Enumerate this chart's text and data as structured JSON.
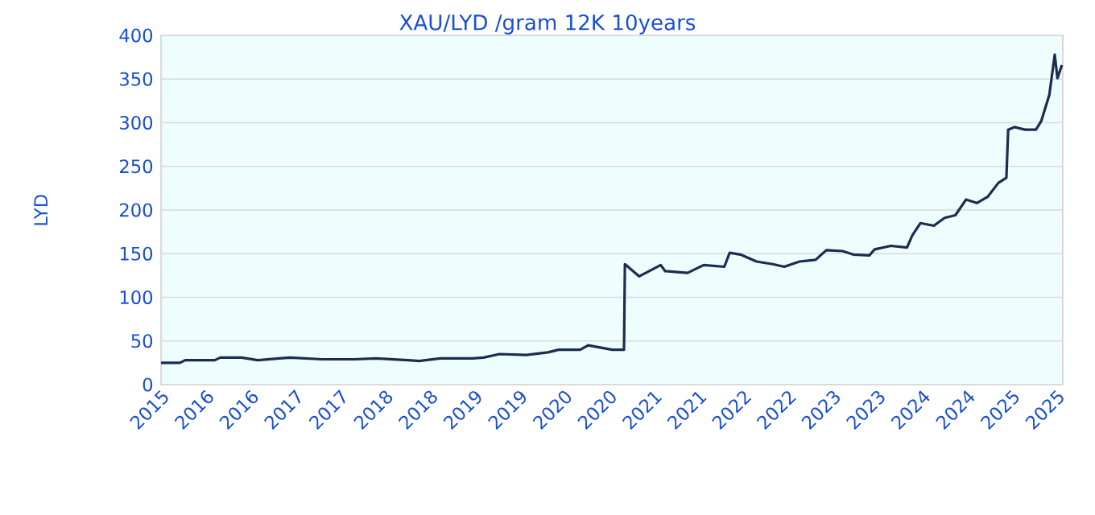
{
  "chart_data": {
    "type": "line",
    "title": "XAU/LYD /gram 12K 10years",
    "ylabel": "LYD",
    "x": [
      2015.5,
      2015.71,
      2015.77,
      2016.1,
      2016.16,
      2016.4,
      2016.58,
      2016.82,
      2016.94,
      2017.3,
      2017.66,
      2017.9,
      2018.26,
      2018.38,
      2018.62,
      2018.98,
      2019.1,
      2019.28,
      2019.58,
      2019.82,
      2019.94,
      2020.18,
      2020.27,
      2020.54,
      2020.67,
      2020.68,
      2020.84,
      2021.08,
      2021.13,
      2021.38,
      2021.56,
      2021.79,
      2021.85,
      2021.97,
      2022.15,
      2022.33,
      2022.46,
      2022.63,
      2022.81,
      2022.93,
      2023.11,
      2023.23,
      2023.41,
      2023.47,
      2023.65,
      2023.83,
      2023.89,
      2023.98,
      2024.13,
      2024.25,
      2024.37,
      2024.49,
      2024.61,
      2024.73,
      2024.85,
      2024.94,
      2024.96,
      2025.03,
      2025.15,
      2025.27,
      2025.33,
      2025.42,
      2025.48,
      2025.51,
      2025.56
    ],
    "series": [
      {
        "color": "#1b2d4f",
        "values": [
          25,
          25,
          28,
          28,
          31,
          31,
          28,
          30,
          31,
          29,
          29,
          30,
          28,
          27,
          30,
          30,
          31,
          35,
          34,
          37,
          40,
          40,
          45,
          40,
          40,
          138,
          124,
          137,
          130,
          128,
          137,
          135,
          151,
          149,
          141,
          138,
          135,
          141,
          143,
          154,
          153,
          149,
          148,
          155,
          159,
          157,
          171,
          185,
          182,
          191,
          194,
          212,
          208,
          215,
          231,
          237,
          292,
          295,
          292,
          292,
          302,
          332,
          378,
          351,
          366
        ]
      }
    ],
    "xlim": [
      2015.5,
      2025.57
    ],
    "ylim": [
      0,
      400
    ],
    "yticks": [
      0,
      50,
      100,
      150,
      200,
      250,
      300,
      350,
      400
    ],
    "xticks": [
      {
        "value": 2015.5,
        "label": "2015"
      },
      {
        "value": 2016.0,
        "label": "2016"
      },
      {
        "value": 2016.5,
        "label": "2016"
      },
      {
        "value": 2017.0,
        "label": "2017"
      },
      {
        "value": 2017.5,
        "label": "2017"
      },
      {
        "value": 2018.0,
        "label": "2018"
      },
      {
        "value": 2018.5,
        "label": "2018"
      },
      {
        "value": 2019.0,
        "label": "2019"
      },
      {
        "value": 2019.5,
        "label": "2019"
      },
      {
        "value": 2020.0,
        "label": "2020"
      },
      {
        "value": 2020.5,
        "label": "2020"
      },
      {
        "value": 2021.0,
        "label": "2021"
      },
      {
        "value": 2021.5,
        "label": "2021"
      },
      {
        "value": 2022.0,
        "label": "2022"
      },
      {
        "value": 2022.5,
        "label": "2022"
      },
      {
        "value": 2023.0,
        "label": "2023"
      },
      {
        "value": 2023.5,
        "label": "2023"
      },
      {
        "value": 2024.0,
        "label": "2024"
      },
      {
        "value": 2024.5,
        "label": "2024"
      },
      {
        "value": 2025.0,
        "label": "2025"
      },
      {
        "value": 2025.5,
        "label": "2025"
      }
    ],
    "grid": "y"
  }
}
